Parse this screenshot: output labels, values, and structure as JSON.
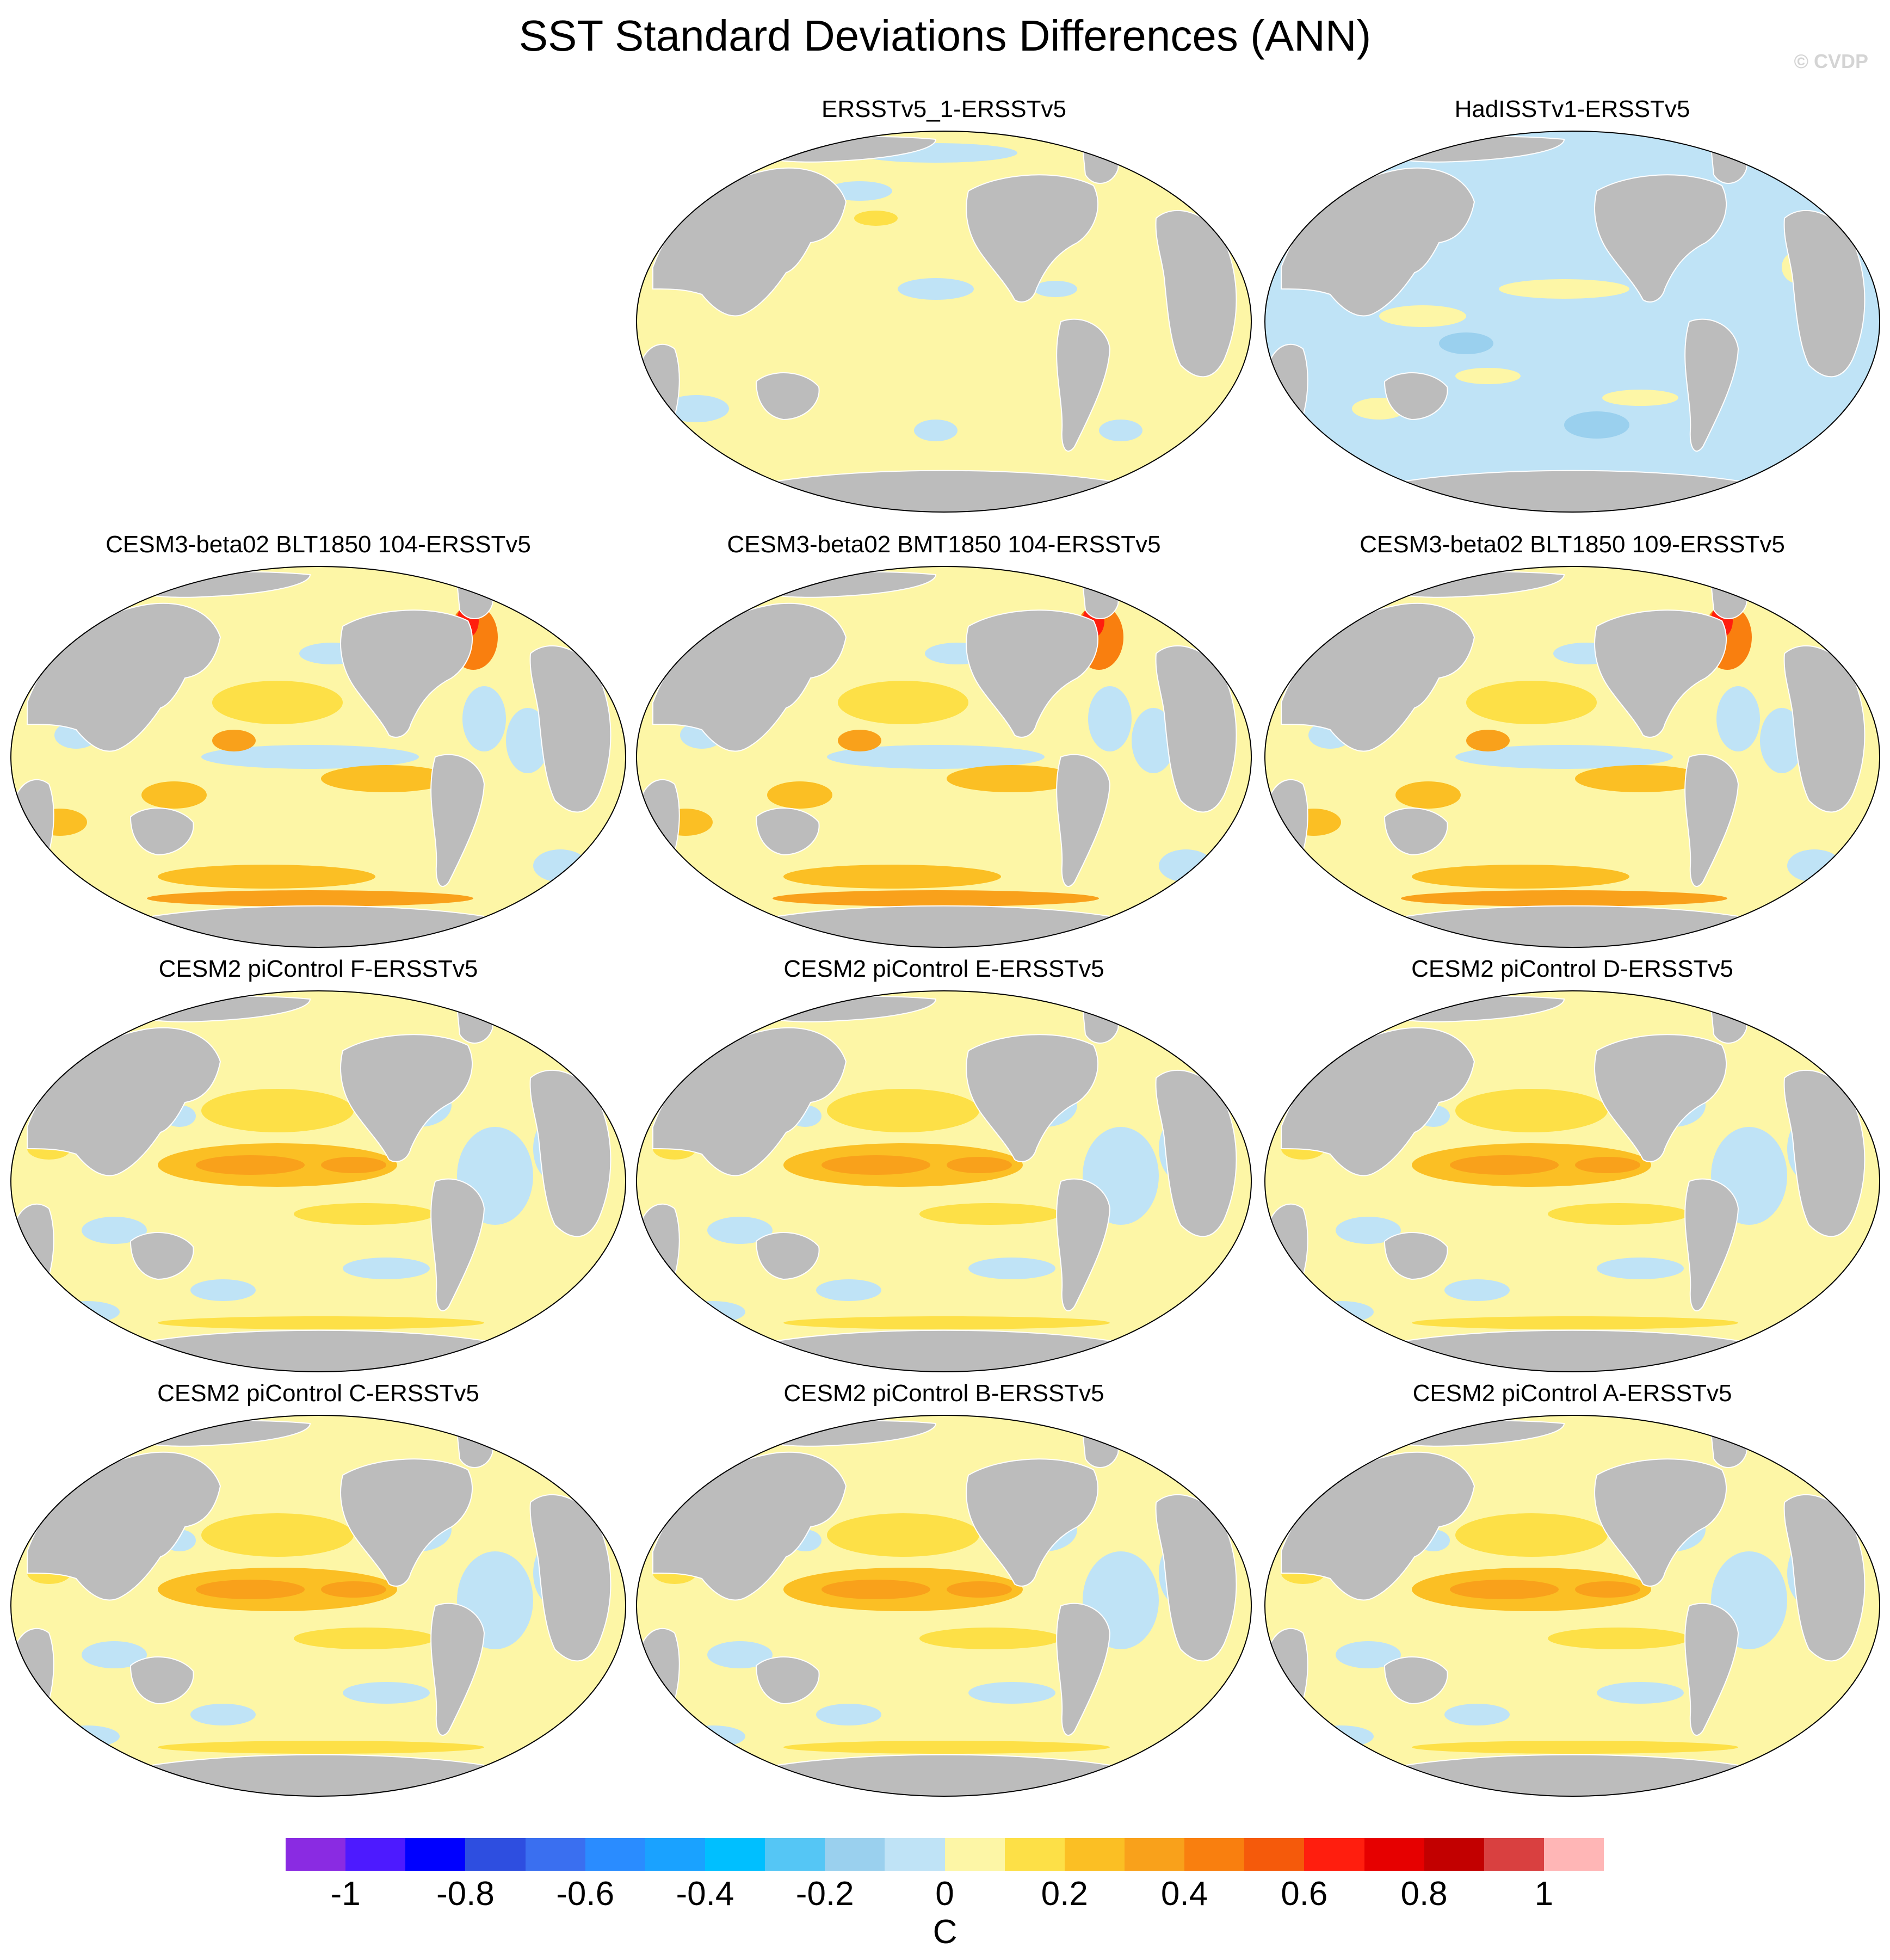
{
  "title": "SST Standard Deviations Differences (ANN)",
  "watermark": "© CVDP",
  "panels": [
    {
      "title": "ERSSTv5_1-ERSSTv5",
      "pattern": "obs1"
    },
    {
      "title": "HadISSTv1-ERSSTv5",
      "pattern": "obs2"
    },
    {
      "title": "CESM3-beta02 BLT1850 104-ERSSTv5",
      "pattern": "cesm3"
    },
    {
      "title": "CESM3-beta02 BMT1850 104-ERSSTv5",
      "pattern": "cesm3"
    },
    {
      "title": "CESM3-beta02 BLT1850 109-ERSSTv5",
      "pattern": "cesm3"
    },
    {
      "title": "CESM2 piControl F-ERSSTv5",
      "pattern": "cesm2"
    },
    {
      "title": "CESM2 piControl E-ERSSTv5",
      "pattern": "cesm2"
    },
    {
      "title": "CESM2 piControl D-ERSSTv5",
      "pattern": "cesm2"
    },
    {
      "title": "CESM2 piControl C-ERSSTv5",
      "pattern": "cesm2"
    },
    {
      "title": "CESM2 piControl B-ERSSTv5",
      "pattern": "cesm2"
    },
    {
      "title": "CESM2 piControl A-ERSSTv5",
      "pattern": "cesm2"
    }
  ],
  "colorbar": {
    "colors": [
      "#8a2be2",
      "#4d1aff",
      "#0000ff",
      "#2e4ee0",
      "#3a6ff0",
      "#2a8cff",
      "#1aa2ff",
      "#00bfff",
      "#55c6f5",
      "#9ad0ee",
      "#bfe3f6",
      "#fdf6a6",
      "#fde047",
      "#fbbf24",
      "#f9a11b",
      "#f97f0f",
      "#f55a0b",
      "#ff1e0e",
      "#e60000",
      "#c20000",
      "#d94040",
      "#ffb6b6"
    ],
    "labels": [
      "-1",
      "-0.8",
      "-0.6",
      "-0.4",
      "-0.2",
      "0",
      "0.2",
      "0.4",
      "0.6",
      "0.8",
      "1"
    ],
    "units": "C"
  }
}
